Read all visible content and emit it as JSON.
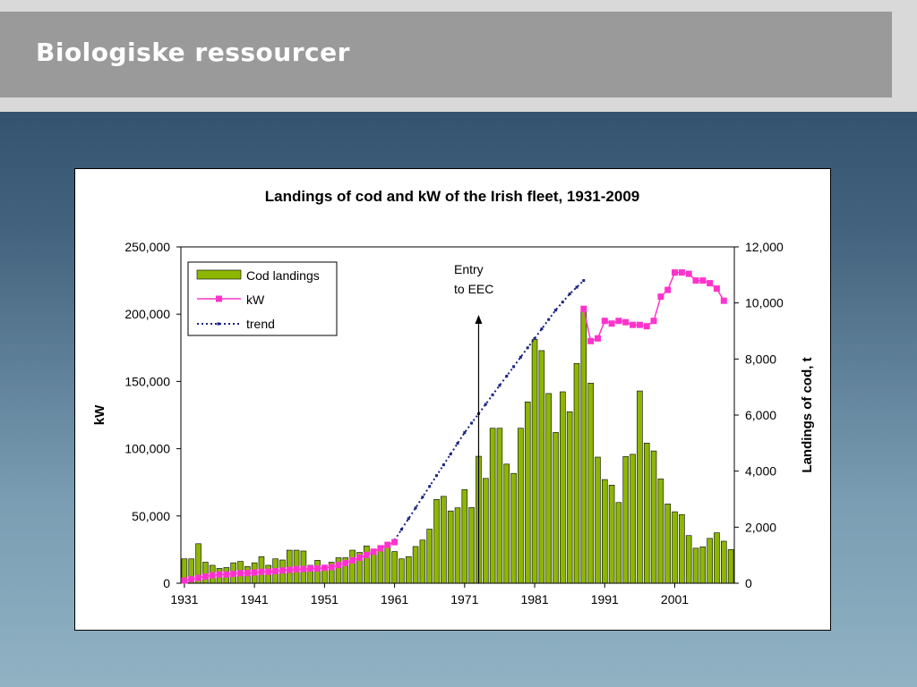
{
  "slide": {
    "title": "Biologiske ressourcer"
  },
  "chart_data": {
    "type": "bar",
    "title": "Landings of cod and kW of the Irish fleet, 1931-2009",
    "ylabel_left": "kW",
    "ylabel_right": "Landings of cod,  t",
    "ylim_left": [
      0,
      250000
    ],
    "ylim_right": [
      0,
      12000
    ],
    "left_ticks": [
      "0",
      "50,000",
      "100,000",
      "150,000",
      "200,000",
      "250,000"
    ],
    "right_ticks": [
      "0",
      "2,000",
      "4,000",
      "6,000",
      "8,000",
      "10,000",
      "12,000"
    ],
    "x_tick_labels": [
      "1931",
      "1941",
      "1951",
      "1961",
      "1971",
      "1981",
      "1991",
      "2001"
    ],
    "legend": {
      "position": "top-left",
      "entries": [
        "Cod landings",
        "kW",
        "trend"
      ]
    },
    "annotation": {
      "lines": [
        "Entry",
        "to EEC"
      ],
      "year": 1973
    },
    "grid": false,
    "series": [
      {
        "name": "Cod landings",
        "kind": "bar",
        "axis": "right",
        "color": "#8db600",
        "x_start": 1931,
        "values": [
          870,
          870,
          1410,
          750,
          640,
          530,
          560,
          730,
          780,
          600,
          730,
          950,
          640,
          870,
          830,
          1180,
          1180,
          1150,
          640,
          820,
          530,
          750,
          910,
          910,
          1180,
          1100,
          1330,
          1180,
          1230,
          1280,
          1130,
          870,
          950,
          1310,
          1540,
          1930,
          2990,
          3100,
          2580,
          2690,
          3340,
          2700,
          4530,
          3740,
          5530,
          5530,
          4250,
          3920,
          5530,
          6470,
          8700,
          8300,
          6770,
          5380,
          6830,
          6120,
          7840,
          9800,
          7140,
          4500,
          3700,
          3500,
          2880,
          4520,
          4600,
          6860,
          5000,
          4720,
          3720,
          2830,
          2550,
          2450,
          1700,
          1250,
          1300,
          1600,
          1800,
          1500,
          1200
        ]
      },
      {
        "name": "kW",
        "kind": "line",
        "axis": "left",
        "color": "#ff33cc",
        "x_start": 1931,
        "values": [
          2000,
          3000,
          4000,
          5000,
          6000,
          6500,
          6500,
          7000,
          7500,
          7500,
          8000,
          8500,
          8500,
          9000,
          9500,
          10000,
          10500,
          10500,
          11000,
          11000,
          11500,
          12000,
          13500,
          15000,
          17000,
          19000,
          21000,
          23500,
          26000,
          28500,
          30500,
          null,
          null,
          null,
          null,
          null,
          null,
          null,
          null,
          null,
          null,
          null,
          null,
          null,
          null,
          null,
          null,
          null,
          null,
          null,
          null,
          null,
          null,
          null,
          null,
          null,
          null,
          204000,
          180000,
          182000,
          195000,
          193000,
          195000,
          194000,
          192000,
          192000,
          191000,
          195000,
          213000,
          218000,
          231000,
          231000,
          230000,
          225000,
          225000,
          223000,
          219000,
          210000
        ]
      },
      {
        "name": "trend",
        "kind": "line",
        "axis": "left",
        "color": "#1a237e",
        "x_start": 1961,
        "values": [
          32000,
          40000,
          48000,
          56000,
          64000,
          72000,
          80000,
          88000,
          96000,
          104000,
          112000,
          119000,
          126000,
          133000,
          140000,
          147000,
          154000,
          161000,
          168000,
          175000,
          182000,
          189000,
          196000,
          203000,
          209000,
          215000,
          220000,
          225000
        ]
      }
    ]
  }
}
